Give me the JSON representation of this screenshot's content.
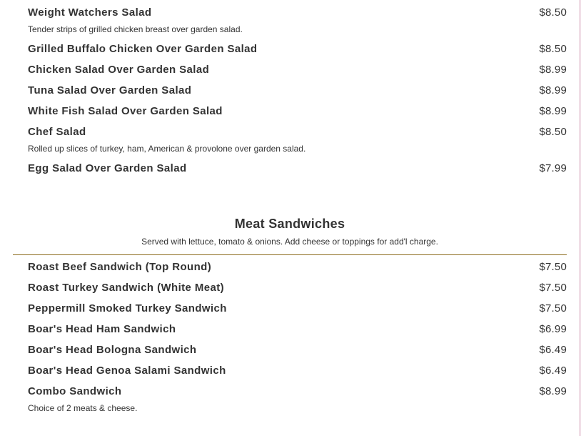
{
  "salads": [
    {
      "name": "Weight Watchers Salad",
      "price": "$8.50",
      "desc": "Tender strips of grilled chicken breast over garden salad."
    },
    {
      "name": "Grilled Buffalo Chicken Over Garden Salad",
      "price": "$8.50"
    },
    {
      "name": "Chicken Salad Over Garden Salad",
      "price": "$8.99"
    },
    {
      "name": "Tuna Salad Over Garden Salad",
      "price": "$8.99"
    },
    {
      "name": "White Fish Salad Over Garden Salad",
      "price": "$8.99"
    },
    {
      "name": "Chef Salad",
      "price": "$8.50",
      "desc": "Rolled up slices of turkey, ham, American & provolone over garden salad."
    },
    {
      "name": "Egg Salad Over Garden Salad",
      "price": "$7.99"
    }
  ],
  "meat_section": {
    "title": "Meat Sandwiches",
    "subtitle": "Served with lettuce, tomato & onions. Add cheese or toppings for add'l charge."
  },
  "sandwiches": [
    {
      "name": "Roast Beef Sandwich (Top Round)",
      "price": "$7.50"
    },
    {
      "name": "Roast Turkey Sandwich (White Meat)",
      "price": "$7.50"
    },
    {
      "name": "Peppermill Smoked Turkey Sandwich",
      "price": "$7.50"
    },
    {
      "name": "Boar's Head Ham Sandwich",
      "price": "$6.99"
    },
    {
      "name": "Boar's Head Bologna Sandwich",
      "price": "$6.49"
    },
    {
      "name": "Boar's Head Genoa Salami Sandwich",
      "price": "$6.49"
    },
    {
      "name": "Combo Sandwich",
      "price": "$8.99",
      "desc": "Choice of 2 meats & cheese."
    }
  ]
}
